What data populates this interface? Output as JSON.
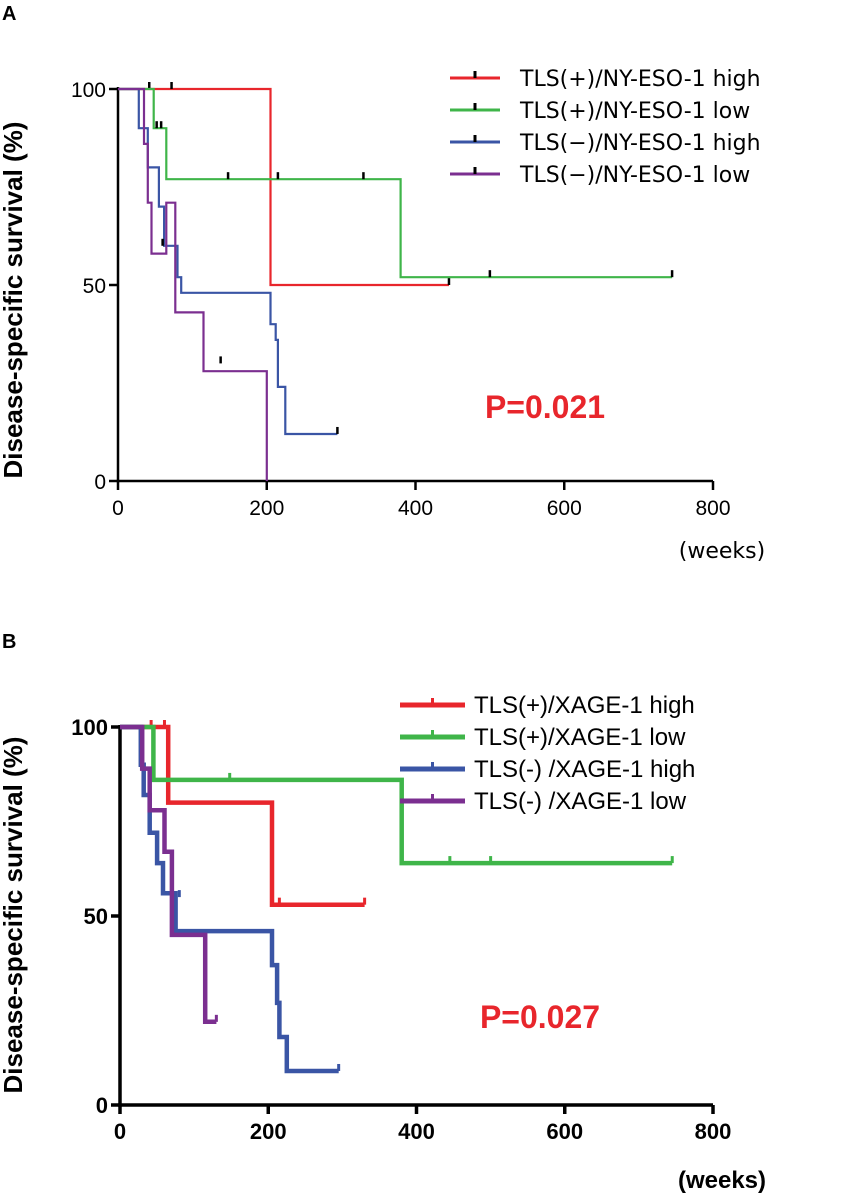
{
  "chart_data": [
    {
      "type": "line",
      "panel": "A",
      "title": "",
      "xlabel": "(weeks)",
      "ylabel": "Disease-specific survival (%)",
      "xlim": [
        0,
        800
      ],
      "ylim": [
        0,
        100
      ],
      "xticks": [
        0,
        200,
        400,
        600,
        800
      ],
      "yticks": [
        0,
        50,
        100
      ],
      "p_value": "P=0.021",
      "legend_position": "top-right",
      "series": [
        {
          "name": "TLS(+)/NY-ESO-1 high",
          "color": "#e8262c",
          "x": [
            0,
            205,
            205,
            445
          ],
          "y": [
            100,
            100,
            50,
            50
          ],
          "censors": [
            [
              42,
              100
            ],
            [
              72,
              100
            ],
            [
              445,
              50
            ]
          ]
        },
        {
          "name": "TLS(+)/NY-ESO-1 low",
          "color": "#3fb549",
          "x": [
            0,
            48,
            48,
            65,
            65,
            380,
            380,
            745
          ],
          "y": [
            100,
            100,
            90,
            90,
            77,
            77,
            52,
            52
          ],
          "censors": [
            [
              52,
              90
            ],
            [
              58,
              90
            ],
            [
              148,
              77
            ],
            [
              215,
              77
            ],
            [
              330,
              77
            ],
            [
              500,
              52
            ],
            [
              745,
              52
            ]
          ]
        },
        {
          "name": "TLS(−)/NY-ESO-1 high",
          "color": "#3a55a5",
          "x": [
            0,
            28,
            28,
            40,
            40,
            55,
            55,
            62,
            62,
            80,
            80,
            85,
            85,
            205,
            205,
            212,
            212,
            215,
            215,
            225,
            225,
            295
          ],
          "y": [
            100,
            100,
            90,
            90,
            80,
            80,
            70,
            70,
            60,
            60,
            52,
            52,
            48,
            48,
            40,
            40,
            36,
            36,
            24,
            24,
            12,
            12
          ],
          "censors": [
            [
              295,
              12
            ]
          ]
        },
        {
          "name": "TLS(−)/NY-ESO-1 low",
          "color": "#7b2f90",
          "x": [
            0,
            35,
            35,
            40,
            40,
            45,
            45,
            65,
            65,
            77,
            77,
            115,
            115,
            200,
            200
          ],
          "y": [
            100,
            100,
            86,
            86,
            71,
            71,
            58,
            58,
            71,
            71,
            43,
            43,
            28,
            28,
            0
          ],
          "censors": [
            [
              60,
              60
            ],
            [
              138,
              30
            ]
          ]
        }
      ]
    },
    {
      "type": "line",
      "panel": "B",
      "title": "",
      "xlabel": "(weeks)",
      "ylabel": "Disease-specific survival (%)",
      "xlim": [
        0,
        800
      ],
      "ylim": [
        0,
        100
      ],
      "xticks": [
        0,
        200,
        400,
        600,
        800
      ],
      "yticks": [
        0,
        50,
        100
      ],
      "p_value": "P=0.027",
      "legend_position": "top-right",
      "series": [
        {
          "name": "TLS(+)/XAGE-1 high",
          "color": "#e8262c",
          "x": [
            0,
            65,
            65,
            205,
            205,
            330
          ],
          "y": [
            100,
            100,
            80,
            80,
            53,
            53
          ],
          "censors": [
            [
              42,
              100
            ],
            [
              60,
              100
            ],
            [
              215,
              53
            ],
            [
              330,
              53
            ]
          ]
        },
        {
          "name": "TLS(+)/XAGE-1 low",
          "color": "#3fb549",
          "x": [
            0,
            45,
            45,
            380,
            380,
            745
          ],
          "y": [
            100,
            100,
            86,
            86,
            64,
            64
          ],
          "censors": [
            [
              148,
              86
            ],
            [
              445,
              64
            ],
            [
              500,
              64
            ],
            [
              745,
              64
            ]
          ]
        },
        {
          "name": "TLS(-) /XAGE-1 high",
          "color": "#3a55a5",
          "x": [
            0,
            28,
            28,
            32,
            32,
            40,
            40,
            50,
            50,
            58,
            58,
            75,
            75,
            82,
            82,
            205,
            205,
            212,
            212,
            215,
            215,
            225,
            225,
            295
          ],
          "y": [
            100,
            100,
            90,
            90,
            82,
            82,
            72,
            72,
            64,
            64,
            56,
            56,
            46,
            46,
            46,
            46,
            37,
            37,
            27,
            27,
            18,
            18,
            9,
            9
          ],
          "censors": [
            [
              80,
              55
            ],
            [
              295,
              9
            ]
          ]
        },
        {
          "name": "TLS(-) /XAGE-1 low",
          "color": "#7b2f90",
          "x": [
            0,
            30,
            30,
            40,
            40,
            60,
            60,
            70,
            70,
            115,
            115,
            130
          ],
          "y": [
            100,
            100,
            89,
            89,
            78,
            78,
            67,
            67,
            45,
            45,
            22,
            22
          ],
          "censors": [
            [
              130,
              22
            ]
          ]
        }
      ]
    }
  ]
}
